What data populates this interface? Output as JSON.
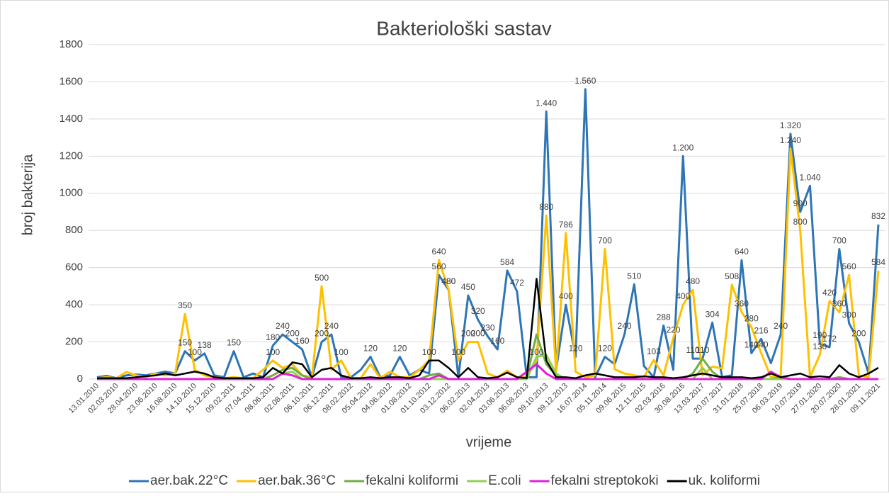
{
  "chart_data": {
    "type": "line",
    "title": "Bakteriološki sastav",
    "y_label": "broj bakterija",
    "x_label": "vrijeme",
    "categories": [
      "13.01.2010",
      null,
      "02.03.2010",
      null,
      "28.04.2010",
      null,
      "23.06.2010",
      null,
      "16.08.2010",
      null,
      "14.10.2010",
      null,
      "15.12.2010",
      null,
      "09.02.2011",
      null,
      "07.04.2011",
      null,
      "08.06.2011",
      null,
      "02.08.2011",
      null,
      "06.10.2011",
      null,
      "06.12.2011",
      null,
      "08.02.2012",
      null,
      "05.04.2012",
      null,
      "04.06.2012",
      null,
      "01.08.2012",
      null,
      "01.10.2012",
      null,
      "03.12.2012",
      null,
      "06.02.2013",
      null,
      "02.04.2013",
      null,
      "03.06.2013",
      null,
      "06.08.2013",
      null,
      "09.10.2013",
      null,
      "09.12.2013",
      null,
      "16.07.2014",
      null,
      "05.11.2014",
      null,
      "09.06.2015",
      null,
      "12.11.2015",
      null,
      "02.03.2016",
      null,
      "30.08.2016",
      null,
      "13.03.2017",
      null,
      "20.07.2017",
      null,
      "31.01.2018",
      null,
      "25.07.2018",
      null,
      "06.03.2019",
      null,
      "10.07.2019",
      null,
      "27.01.2020",
      null,
      "20.07.2020",
      null,
      "28.01.2021",
      null,
      "09.11.2021"
    ],
    "series": [
      {
        "name": "aer.bak.22°C",
        "color": "#2e75b6",
        "values": [
          10,
          17,
          5,
          20,
          25,
          20,
          30,
          40,
          30,
          150,
          100,
          138,
          20,
          10,
          150,
          10,
          30,
          10,
          180,
          240,
          200,
          160,
          10,
          200,
          240,
          10,
          10,
          50,
          120,
          10,
          20,
          120,
          20,
          50,
          30,
          560,
          480,
          10,
          450,
          320,
          230,
          160,
          584,
          472,
          10,
          10,
          1440,
          50,
          400,
          120,
          1560,
          10,
          120,
          80,
          240,
          510,
          70,
          10,
          288,
          50,
          1200,
          110,
          110,
          304,
          11,
          20,
          640,
          140,
          216,
          86,
          240,
          1320,
          900,
          1040,
          190,
          172,
          700,
          300,
          200,
          30,
          832
        ],
        "value_labels": [
          null,
          null,
          null,
          null,
          null,
          null,
          null,
          null,
          null,
          null,
          null,
          null,
          null,
          null,
          null,
          null,
          null,
          null,
          null,
          null,
          null,
          null,
          null,
          null,
          null,
          null,
          null,
          null,
          null,
          null,
          null,
          null,
          null,
          null,
          null,
          null,
          null,
          null,
          null,
          null,
          null,
          null,
          null,
          null,
          null,
          null,
          "1.440",
          null,
          null,
          null,
          "1.560",
          null,
          null,
          null,
          null,
          null,
          null,
          null,
          null,
          null,
          "1.200",
          null,
          null,
          null,
          null,
          null,
          null,
          null,
          null,
          null,
          null,
          "1.320",
          null,
          "1.040",
          null,
          null,
          null,
          null,
          null,
          null,
          null
        ]
      },
      {
        "name": "aer.bak.36°C",
        "color": "#ffc000",
        "values": [
          5,
          10,
          5,
          38,
          20,
          10,
          30,
          20,
          30,
          350,
          50,
          20,
          10,
          5,
          10,
          5,
          5,
          50,
          100,
          60,
          80,
          20,
          10,
          500,
          50,
          100,
          5,
          5,
          80,
          5,
          40,
          10,
          10,
          50,
          100,
          640,
          480,
          100,
          200,
          200,
          30,
          10,
          45,
          10,
          10,
          100,
          880,
          40,
          786,
          40,
          10,
          20,
          700,
          53,
          30,
          20,
          10,
          103,
          20,
          220,
          400,
          480,
          20,
          67,
          58,
          508,
          360,
          280,
          140,
          10,
          20,
          1240,
          800,
          10,
          130,
          420,
          360,
          560,
          20,
          10,
          584
        ],
        "value_labels": [
          null,
          null,
          null,
          null,
          null,
          null,
          null,
          null,
          null,
          null,
          null,
          null,
          null,
          null,
          null,
          null,
          null,
          null,
          null,
          null,
          null,
          null,
          null,
          null,
          null,
          null,
          null,
          null,
          null,
          null,
          null,
          null,
          null,
          null,
          null,
          null,
          null,
          null,
          null,
          null,
          null,
          null,
          null,
          null,
          null,
          null,
          null,
          null,
          null,
          null,
          null,
          null,
          null,
          null,
          null,
          null,
          null,
          null,
          null,
          null,
          null,
          null,
          null,
          null,
          null,
          null,
          null,
          null,
          null,
          null,
          null,
          "1.240",
          null,
          null,
          null,
          null,
          null,
          null,
          null,
          null,
          null
        ]
      },
      {
        "name": "fekalni koliformi",
        "color": "#70ad47",
        "values": [
          0,
          0,
          0,
          0,
          0,
          0,
          0,
          0,
          0,
          0,
          0,
          0,
          0,
          0,
          0,
          0,
          0,
          0,
          20,
          50,
          60,
          20,
          0,
          0,
          0,
          0,
          0,
          0,
          0,
          0,
          0,
          0,
          0,
          0,
          20,
          30,
          0,
          0,
          0,
          0,
          0,
          0,
          0,
          0,
          10,
          240,
          80,
          20,
          0,
          0,
          0,
          0,
          0,
          0,
          0,
          0,
          0,
          0,
          0,
          0,
          0,
          30,
          110,
          40,
          0,
          0,
          0,
          0,
          0,
          0,
          10,
          0,
          0,
          0,
          0,
          0,
          10,
          0,
          0,
          0,
          0
        ]
      },
      {
        "name": "E.coli",
        "color": "#92d050",
        "values": [
          0,
          0,
          0,
          0,
          0,
          0,
          0,
          0,
          0,
          0,
          0,
          0,
          0,
          0,
          0,
          0,
          0,
          0,
          0,
          30,
          40,
          0,
          0,
          0,
          0,
          0,
          0,
          0,
          0,
          0,
          0,
          0,
          0,
          0,
          0,
          0,
          0,
          0,
          0,
          0,
          0,
          0,
          0,
          0,
          0,
          120,
          130,
          30,
          0,
          0,
          0,
          0,
          0,
          0,
          0,
          0,
          0,
          0,
          0,
          0,
          0,
          0,
          60,
          0,
          0,
          0,
          0,
          0,
          0,
          0,
          0,
          0,
          0,
          0,
          0,
          0,
          0,
          0,
          0,
          0,
          0
        ]
      },
      {
        "name": "fekalni streptokoki",
        "color": "#e020d8",
        "values": [
          0,
          0,
          0,
          0,
          0,
          0,
          0,
          0,
          0,
          0,
          0,
          0,
          0,
          0,
          0,
          0,
          0,
          0,
          0,
          30,
          20,
          0,
          0,
          0,
          0,
          0,
          0,
          0,
          0,
          0,
          0,
          0,
          0,
          0,
          0,
          20,
          0,
          0,
          0,
          0,
          0,
          0,
          0,
          0,
          40,
          80,
          30,
          0,
          0,
          0,
          0,
          0,
          0,
          0,
          0,
          0,
          0,
          0,
          0,
          0,
          0,
          0,
          0,
          0,
          0,
          0,
          0,
          0,
          0,
          40,
          10,
          0,
          0,
          0,
          0,
          0,
          0,
          0,
          0,
          0,
          0
        ]
      },
      {
        "name": "uk. koliformi",
        "color": "#000000",
        "values": [
          5,
          5,
          5,
          5,
          10,
          15,
          20,
          30,
          20,
          30,
          40,
          30,
          10,
          5,
          5,
          5,
          5,
          10,
          60,
          30,
          90,
          80,
          10,
          50,
          60,
          20,
          5,
          5,
          10,
          5,
          10,
          10,
          5,
          20,
          100,
          100,
          60,
          10,
          60,
          10,
          5,
          10,
          35,
          10,
          5,
          540,
          100,
          10,
          10,
          5,
          20,
          30,
          20,
          10,
          10,
          10,
          15,
          10,
          10,
          5,
          10,
          20,
          30,
          20,
          10,
          10,
          10,
          5,
          10,
          30,
          10,
          20,
          30,
          10,
          15,
          10,
          75,
          30,
          10,
          30,
          61
        ]
      }
    ],
    "ylim": [
      0,
      1800
    ],
    "yticks": [
      0,
      200,
      400,
      600,
      800,
      1000,
      1200,
      1400,
      1600,
      1800
    ],
    "grid": true
  }
}
